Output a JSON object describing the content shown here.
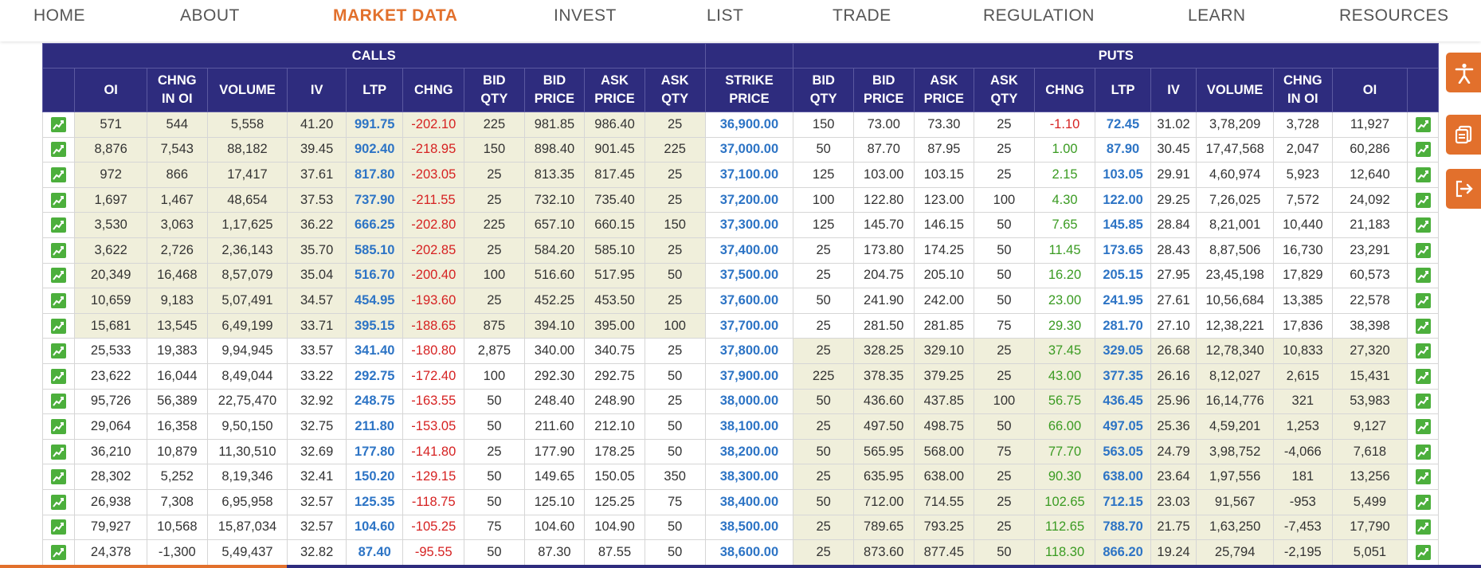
{
  "nav": {
    "items": [
      {
        "label": "HOME"
      },
      {
        "label": "ABOUT"
      },
      {
        "label": "MARKET DATA"
      },
      {
        "label": "INVEST"
      },
      {
        "label": "LIST"
      },
      {
        "label": "TRADE"
      },
      {
        "label": "REGULATION"
      },
      {
        "label": "LEARN"
      },
      {
        "label": "RESOURCES"
      }
    ],
    "active": "MARKET DATA"
  },
  "option_chain": {
    "groups": {
      "calls": "CALLS",
      "puts": "PUTS"
    },
    "call_columns": [
      {
        "l1": "OI",
        "l2": ""
      },
      {
        "l1": "CHNG",
        "l2": "IN OI"
      },
      {
        "l1": "VOLUME",
        "l2": ""
      },
      {
        "l1": "IV",
        "l2": ""
      },
      {
        "l1": "LTP",
        "l2": ""
      },
      {
        "l1": "CHNG",
        "l2": ""
      },
      {
        "l1": "BID",
        "l2": "QTY"
      },
      {
        "l1": "BID",
        "l2": "PRICE"
      },
      {
        "l1": "ASK",
        "l2": "PRICE"
      },
      {
        "l1": "ASK",
        "l2": "QTY"
      }
    ],
    "strike_column": {
      "l1": "STRIKE",
      "l2": "PRICE"
    },
    "put_columns": [
      {
        "l1": "BID",
        "l2": "QTY"
      },
      {
        "l1": "BID",
        "l2": "PRICE"
      },
      {
        "l1": "ASK",
        "l2": "PRICE"
      },
      {
        "l1": "ASK",
        "l2": "QTY"
      },
      {
        "l1": "CHNG",
        "l2": ""
      },
      {
        "l1": "LTP",
        "l2": ""
      },
      {
        "l1": "IV",
        "l2": ""
      },
      {
        "l1": "VOLUME",
        "l2": ""
      },
      {
        "l1": "CHNG",
        "l2": "IN OI"
      },
      {
        "l1": "OI",
        "l2": ""
      }
    ],
    "rows": [
      {
        "call": [
          "571",
          "544",
          "5,558",
          "41.20",
          "991.75",
          "-202.10",
          "225",
          "981.85",
          "986.40",
          "25"
        ],
        "strike": "36,900.00",
        "put": [
          "150",
          "73.00",
          "73.30",
          "25",
          "-1.10",
          "72.45",
          "31.02",
          "3,78,209",
          "3,728",
          "11,927"
        ],
        "call_itm": true,
        "put_itm": false
      },
      {
        "call": [
          "8,876",
          "7,543",
          "88,182",
          "39.45",
          "902.40",
          "-218.95",
          "150",
          "898.40",
          "901.45",
          "225"
        ],
        "strike": "37,000.00",
        "put": [
          "50",
          "87.70",
          "87.95",
          "25",
          "1.00",
          "87.90",
          "30.45",
          "17,47,568",
          "2,047",
          "60,286"
        ],
        "call_itm": true,
        "put_itm": false
      },
      {
        "call": [
          "972",
          "866",
          "17,417",
          "37.61",
          "817.80",
          "-203.05",
          "25",
          "813.35",
          "817.45",
          "25"
        ],
        "strike": "37,100.00",
        "put": [
          "125",
          "103.00",
          "103.15",
          "25",
          "2.15",
          "103.05",
          "29.91",
          "4,60,974",
          "5,923",
          "12,640"
        ],
        "call_itm": true,
        "put_itm": false
      },
      {
        "call": [
          "1,697",
          "1,467",
          "48,654",
          "37.53",
          "737.90",
          "-211.55",
          "25",
          "732.10",
          "735.40",
          "25"
        ],
        "strike": "37,200.00",
        "put": [
          "100",
          "122.80",
          "123.00",
          "100",
          "4.30",
          "122.00",
          "29.25",
          "7,26,025",
          "7,572",
          "24,092"
        ],
        "call_itm": true,
        "put_itm": false
      },
      {
        "call": [
          "3,530",
          "3,063",
          "1,17,625",
          "36.22",
          "666.25",
          "-202.80",
          "225",
          "657.10",
          "660.15",
          "150"
        ],
        "strike": "37,300.00",
        "put": [
          "125",
          "145.70",
          "146.15",
          "50",
          "7.65",
          "145.85",
          "28.84",
          "8,21,001",
          "10,440",
          "21,183"
        ],
        "call_itm": true,
        "put_itm": false
      },
      {
        "call": [
          "3,622",
          "2,726",
          "2,36,143",
          "35.70",
          "585.10",
          "-202.85",
          "25",
          "584.20",
          "585.10",
          "25"
        ],
        "strike": "37,400.00",
        "put": [
          "25",
          "173.80",
          "174.25",
          "50",
          "11.45",
          "173.65",
          "28.43",
          "8,87,506",
          "16,730",
          "23,291"
        ],
        "call_itm": true,
        "put_itm": false
      },
      {
        "call": [
          "20,349",
          "16,468",
          "8,57,079",
          "35.04",
          "516.70",
          "-200.40",
          "100",
          "516.60",
          "517.95",
          "50"
        ],
        "strike": "37,500.00",
        "put": [
          "25",
          "204.75",
          "205.10",
          "50",
          "16.20",
          "205.15",
          "27.95",
          "23,45,198",
          "17,829",
          "60,573"
        ],
        "call_itm": true,
        "put_itm": false
      },
      {
        "call": [
          "10,659",
          "9,183",
          "5,07,491",
          "34.57",
          "454.95",
          "-193.60",
          "25",
          "452.25",
          "453.50",
          "25"
        ],
        "strike": "37,600.00",
        "put": [
          "50",
          "241.90",
          "242.00",
          "50",
          "23.00",
          "241.95",
          "27.61",
          "10,56,684",
          "13,385",
          "22,578"
        ],
        "call_itm": true,
        "put_itm": false
      },
      {
        "call": [
          "15,681",
          "13,545",
          "6,49,199",
          "33.71",
          "395.15",
          "-188.65",
          "875",
          "394.10",
          "395.00",
          "100"
        ],
        "strike": "37,700.00",
        "put": [
          "25",
          "281.50",
          "281.85",
          "75",
          "29.30",
          "281.70",
          "27.10",
          "12,38,221",
          "17,836",
          "38,398"
        ],
        "call_itm": true,
        "put_itm": false
      },
      {
        "call": [
          "25,533",
          "19,383",
          "9,94,945",
          "33.57",
          "341.40",
          "-180.80",
          "2,875",
          "340.00",
          "340.75",
          "25"
        ],
        "strike": "37,800.00",
        "put": [
          "25",
          "328.25",
          "329.10",
          "25",
          "37.45",
          "329.05",
          "26.68",
          "12,78,340",
          "10,833",
          "27,320"
        ],
        "call_itm": false,
        "put_itm": true
      },
      {
        "call": [
          "23,622",
          "16,044",
          "8,49,044",
          "33.22",
          "292.75",
          "-172.40",
          "100",
          "292.30",
          "292.75",
          "50"
        ],
        "strike": "37,900.00",
        "put": [
          "225",
          "378.35",
          "379.25",
          "25",
          "43.00",
          "377.35",
          "26.16",
          "8,12,027",
          "2,615",
          "15,431"
        ],
        "call_itm": false,
        "put_itm": true
      },
      {
        "call": [
          "95,726",
          "56,389",
          "22,75,470",
          "32.92",
          "248.75",
          "-163.55",
          "50",
          "248.40",
          "248.90",
          "25"
        ],
        "strike": "38,000.00",
        "put": [
          "50",
          "436.60",
          "437.85",
          "100",
          "56.75",
          "436.45",
          "25.96",
          "16,14,776",
          "321",
          "53,983"
        ],
        "call_itm": false,
        "put_itm": true
      },
      {
        "call": [
          "29,064",
          "16,358",
          "9,50,150",
          "32.75",
          "211.80",
          "-153.05",
          "50",
          "211.60",
          "212.10",
          "50"
        ],
        "strike": "38,100.00",
        "put": [
          "25",
          "497.50",
          "498.75",
          "50",
          "66.00",
          "497.05",
          "25.36",
          "4,59,201",
          "1,253",
          "9,127"
        ],
        "call_itm": false,
        "put_itm": true
      },
      {
        "call": [
          "36,210",
          "10,879",
          "11,30,510",
          "32.69",
          "177.80",
          "-141.80",
          "25",
          "177.90",
          "178.25",
          "50"
        ],
        "strike": "38,200.00",
        "put": [
          "50",
          "565.95",
          "568.00",
          "75",
          "77.70",
          "563.05",
          "24.79",
          "3,98,752",
          "-4,066",
          "7,618"
        ],
        "call_itm": false,
        "put_itm": true
      },
      {
        "call": [
          "28,302",
          "5,252",
          "8,19,346",
          "32.41",
          "150.20",
          "-129.15",
          "50",
          "149.65",
          "150.05",
          "350"
        ],
        "strike": "38,300.00",
        "put": [
          "25",
          "635.95",
          "638.00",
          "25",
          "90.30",
          "638.00",
          "23.64",
          "1,97,556",
          "181",
          "13,256"
        ],
        "call_itm": false,
        "put_itm": true
      },
      {
        "call": [
          "26,938",
          "7,308",
          "6,95,958",
          "32.57",
          "125.35",
          "-118.75",
          "50",
          "125.10",
          "125.25",
          "75"
        ],
        "strike": "38,400.00",
        "put": [
          "50",
          "712.00",
          "714.55",
          "25",
          "102.65",
          "712.15",
          "23.03",
          "91,567",
          "-953",
          "5,499"
        ],
        "call_itm": false,
        "put_itm": true
      },
      {
        "call": [
          "79,927",
          "10,568",
          "15,87,034",
          "32.57",
          "104.60",
          "-105.25",
          "75",
          "104.60",
          "104.90",
          "50"
        ],
        "strike": "38,500.00",
        "put": [
          "25",
          "789.65",
          "793.25",
          "25",
          "112.65",
          "788.70",
          "21.75",
          "1,63,250",
          "-7,453",
          "17,790"
        ],
        "call_itm": false,
        "put_itm": true
      },
      {
        "call": [
          "24,378",
          "-1,300",
          "5,49,437",
          "32.82",
          "87.40",
          "-95.55",
          "50",
          "87.30",
          "87.55",
          "50"
        ],
        "strike": "38,600.00",
        "put": [
          "25",
          "873.60",
          "877.45",
          "50",
          "118.30",
          "866.20",
          "19.24",
          "25,794",
          "-2,195",
          "5,051"
        ],
        "call_itm": false,
        "put_itm": true
      }
    ]
  },
  "side_buttons": [
    {
      "icon": "accessibility-icon"
    },
    {
      "icon": "copy-icon"
    },
    {
      "icon": "login-icon"
    }
  ],
  "colors": {
    "header_bg": "#2e2c7e",
    "accent": "#e2702c",
    "itm_bg": "#f0efdb",
    "ltp": "#2d74c5",
    "negative": "#d62222",
    "positive": "#3a9b22"
  }
}
